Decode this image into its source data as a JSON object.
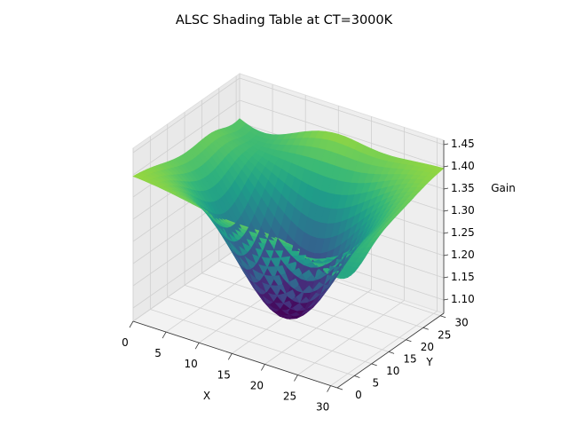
{
  "chart_data": {
    "type": "surface",
    "title": "ALSC Shading Table at CT=3000K",
    "xlabel": "X",
    "ylabel": "Y",
    "zlabel": "Gain",
    "x_range": [
      0,
      31
    ],
    "y_range": [
      0,
      31
    ],
    "zlim": [
      1.07,
      1.46
    ],
    "grid_size": [
      32,
      32
    ],
    "x_ticks": [
      "0",
      "5",
      "10",
      "15",
      "20",
      "25",
      "30"
    ],
    "y_ticks": [
      "0",
      "5",
      "10",
      "15",
      "20",
      "25",
      "30"
    ],
    "z_ticks": [
      "1.10",
      "1.15",
      "1.20",
      "1.25",
      "1.30",
      "1.35",
      "1.40",
      "1.45"
    ],
    "colormap": "viridis",
    "gain_min_approx": 1.07,
    "gain_max_approx": 1.46,
    "grid": true
  }
}
